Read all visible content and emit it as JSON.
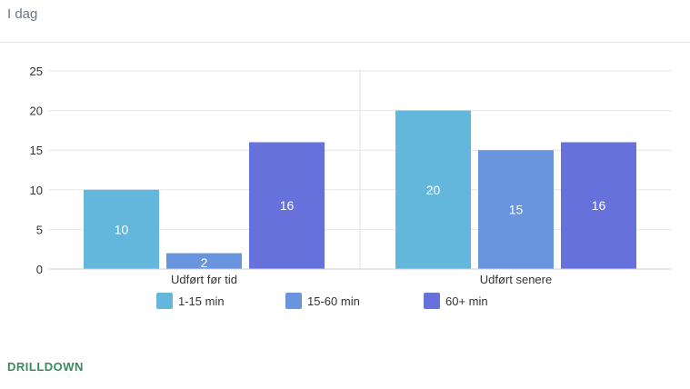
{
  "header": {
    "subtitle": "I dag"
  },
  "actions": {
    "drilldown_label": "DRILLDOWN"
  },
  "chart_data": {
    "type": "bar",
    "categories": [
      "Udført før tid",
      "Udført senere"
    ],
    "series": [
      {
        "name": "1-15 min",
        "color": "#63b6dc",
        "values": [
          10,
          20
        ]
      },
      {
        "name": "15-60 min",
        "color": "#6895de",
        "values": [
          2,
          15
        ]
      },
      {
        "name": "60+ min",
        "color": "#6771dc",
        "values": [
          16,
          16
        ]
      }
    ],
    "ylim": [
      0,
      25
    ],
    "yticks": [
      0,
      5,
      10,
      15,
      20,
      25
    ],
    "grid": true,
    "data_labels": true,
    "legend_position": "bottom"
  }
}
